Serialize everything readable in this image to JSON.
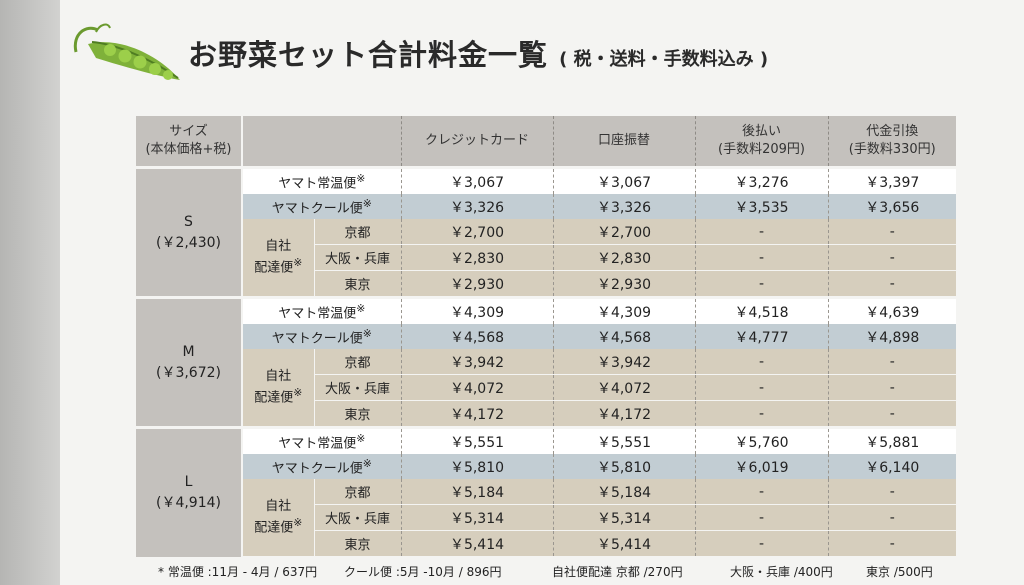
{
  "title": "お野菜セット合計料金一覧",
  "subtitle": "( 税・送料・手数料込み )",
  "headers": {
    "size": "サイズ",
    "size_sub": "(本体価格+税)",
    "credit": "クレジットカード",
    "bank": "口座振替",
    "postpay": "後払い",
    "postpay_sub": "(手数料209円)",
    "cod": "代金引換",
    "cod_sub": "(手数料330円)"
  },
  "labels": {
    "normal": "ヤマト常温便",
    "cool": "ヤマトクール便",
    "own": "自社",
    "own2": "配達便",
    "mark": "※",
    "kyoto": "京都",
    "osaka": "大阪・兵庫",
    "tokyo": "東京"
  },
  "sizes": [
    {
      "name": "S",
      "price": "(￥2,430)",
      "rows": [
        [
          "￥3,067",
          "￥3,067",
          "￥3,276",
          "￥3,397"
        ],
        [
          "￥3,326",
          "￥3,326",
          "￥3,535",
          "￥3,656"
        ],
        [
          "￥2,700",
          "￥2,700",
          "-",
          "-"
        ],
        [
          "￥2,830",
          "￥2,830",
          "-",
          "-"
        ],
        [
          "￥2,930",
          "￥2,930",
          "-",
          "-"
        ]
      ]
    },
    {
      "name": "M",
      "price": "(￥3,672)",
      "rows": [
        [
          "￥4,309",
          "￥4,309",
          "￥4,518",
          "￥4,639"
        ],
        [
          "￥4,568",
          "￥4,568",
          "￥4,777",
          "￥4,898"
        ],
        [
          "￥3,942",
          "￥3,942",
          "-",
          "-"
        ],
        [
          "￥4,072",
          "￥4,072",
          "-",
          "-"
        ],
        [
          "￥4,172",
          "￥4,172",
          "-",
          "-"
        ]
      ]
    },
    {
      "name": "L",
      "price": "(￥4,914)",
      "rows": [
        [
          "￥5,551",
          "￥5,551",
          "￥5,760",
          "￥5,881"
        ],
        [
          "￥5,810",
          "￥5,810",
          "￥6,019",
          "￥6,140"
        ],
        [
          "￥5,184",
          "￥5,184",
          "-",
          "-"
        ],
        [
          "￥5,314",
          "￥5,314",
          "-",
          "-"
        ],
        [
          "￥5,414",
          "￥5,414",
          "-",
          "-"
        ]
      ]
    }
  ],
  "footnotes": {
    "mark": "*",
    "normal": "常温便 :11月 - 4月 / 637円",
    "cool": "クール便 :5月 -10月 / 896円",
    "own": "自社便配達 京都 /270円",
    "osaka": "大阪・兵庫 /400円",
    "tokyo": "東京 /500円"
  },
  "colors": {
    "header_bg": "#c4c1bd",
    "cool_row_bg": "#c2cdd3",
    "own_delivery_bg": "#d6cebd",
    "normal_row_bg": "#ffffff"
  }
}
